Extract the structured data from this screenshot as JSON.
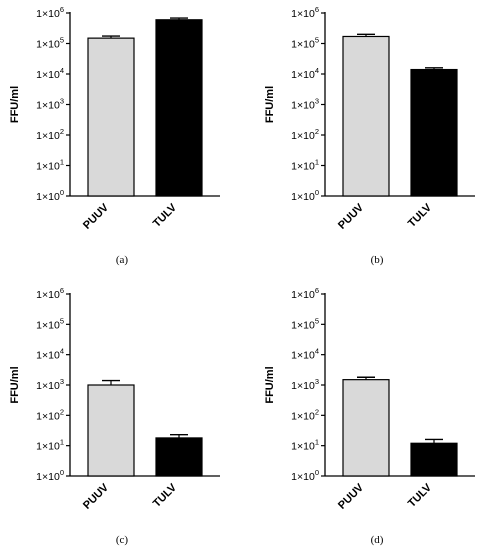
{
  "tick_values": [
    "10",
    "10",
    "10",
    "10",
    "10",
    "10",
    "10"
  ],
  "tick_exponents": [
    "0",
    "1",
    "2",
    "3",
    "4",
    "5",
    "6"
  ],
  "tick_prefix": "1×",
  "colors": {
    "PUUV": "#d9d9d9",
    "TULV": "#000000"
  },
  "chart_data": [
    {
      "type": "bar",
      "caption": "(a)",
      "ylabel": "FFU/ml",
      "yscale": "log",
      "ylim": [
        1,
        1000000
      ],
      "categories": [
        "PUUV",
        "TULV"
      ],
      "values": [
        150000,
        600000
      ],
      "error_upper": [
        175000,
        680000
      ]
    },
    {
      "type": "bar",
      "caption": "(b)",
      "ylabel": "FFU/ml",
      "yscale": "log",
      "ylim": [
        1,
        1000000
      ],
      "categories": [
        "PUUV",
        "TULV"
      ],
      "values": [
        170000,
        14000
      ],
      "error_upper": [
        200000,
        16000
      ]
    },
    {
      "type": "bar",
      "caption": "(c)",
      "ylabel": "FFU/ml",
      "yscale": "log",
      "ylim": [
        1,
        1000000
      ],
      "categories": [
        "PUUV",
        "TULV"
      ],
      "values": [
        1000,
        18
      ],
      "error_upper": [
        1400,
        23
      ]
    },
    {
      "type": "bar",
      "caption": "(d)",
      "ylabel": "FFU/ml",
      "yscale": "log",
      "ylim": [
        1,
        1000000
      ],
      "categories": [
        "PUUV",
        "TULV"
      ],
      "values": [
        1500,
        12
      ],
      "error_upper": [
        1800,
        16
      ]
    }
  ]
}
